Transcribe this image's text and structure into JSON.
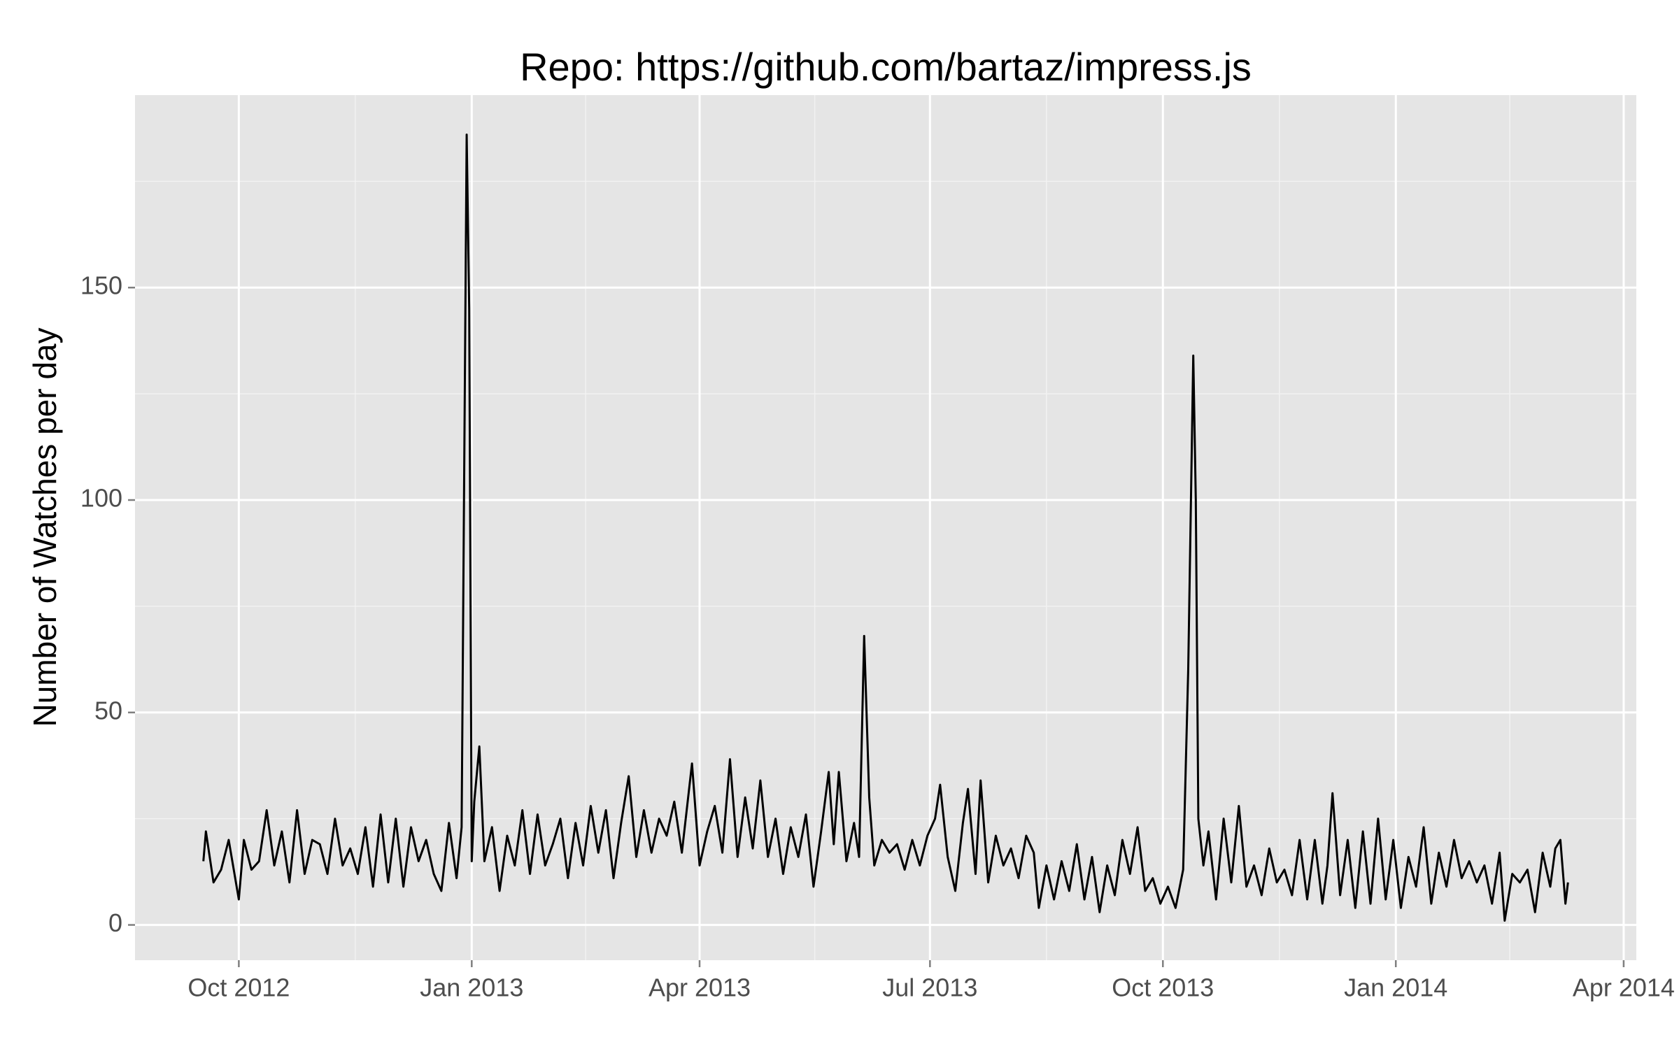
{
  "chart_data": {
    "type": "line",
    "title": "Repo: https://github.com/bartaz/impress.js",
    "y_label": "Number of Watches per day",
    "xlim": [
      "2012-08-21",
      "2014-04-06"
    ],
    "xticks": [
      {
        "value": "2012-10-01",
        "label": "Oct 2012"
      },
      {
        "value": "2013-01-01",
        "label": "Jan 2013"
      },
      {
        "value": "2013-04-01",
        "label": "Apr 2013"
      },
      {
        "value": "2013-07-01",
        "label": "Jul 2013"
      },
      {
        "value": "2013-10-01",
        "label": "Oct 2013"
      },
      {
        "value": "2014-01-01",
        "label": "Jan 2014"
      },
      {
        "value": "2014-04-01",
        "label": "Apr 2014"
      }
    ],
    "ylim": [
      -8.3,
      195.3
    ],
    "yticks": [
      0,
      50,
      100,
      150
    ],
    "grid": true,
    "x": [
      "2012-09-17",
      "2012-09-18",
      "2012-09-21",
      "2012-09-24",
      "2012-09-27",
      "2012-10-01",
      "2012-10-03",
      "2012-10-06",
      "2012-10-09",
      "2012-10-12",
      "2012-10-15",
      "2012-10-18",
      "2012-10-21",
      "2012-10-24",
      "2012-10-27",
      "2012-10-30",
      "2012-11-02",
      "2012-11-05",
      "2012-11-08",
      "2012-11-11",
      "2012-11-14",
      "2012-11-17",
      "2012-11-20",
      "2012-11-23",
      "2012-11-26",
      "2012-11-29",
      "2012-12-02",
      "2012-12-05",
      "2012-12-08",
      "2012-12-11",
      "2012-12-14",
      "2012-12-17",
      "2012-12-20",
      "2012-12-23",
      "2012-12-26",
      "2012-12-28",
      "2012-12-30",
      "2012-12-31",
      "2013-01-01",
      "2013-01-02",
      "2013-01-04",
      "2013-01-06",
      "2013-01-09",
      "2013-01-12",
      "2013-01-15",
      "2013-01-18",
      "2013-01-21",
      "2013-01-24",
      "2013-01-27",
      "2013-01-30",
      "2013-02-02",
      "2013-02-05",
      "2013-02-08",
      "2013-02-11",
      "2013-02-14",
      "2013-02-17",
      "2013-02-20",
      "2013-02-23",
      "2013-02-26",
      "2013-03-01",
      "2013-03-04",
      "2013-03-07",
      "2013-03-10",
      "2013-03-13",
      "2013-03-16",
      "2013-03-19",
      "2013-03-22",
      "2013-03-25",
      "2013-03-29",
      "2013-04-01",
      "2013-04-04",
      "2013-04-07",
      "2013-04-10",
      "2013-04-13",
      "2013-04-16",
      "2013-04-19",
      "2013-04-22",
      "2013-04-25",
      "2013-04-28",
      "2013-05-01",
      "2013-05-04",
      "2013-05-07",
      "2013-05-10",
      "2013-05-13",
      "2013-05-16",
      "2013-05-19",
      "2013-05-22",
      "2013-05-24",
      "2013-05-26",
      "2013-05-29",
      "2013-06-01",
      "2013-06-03",
      "2013-06-05",
      "2013-06-07",
      "2013-06-09",
      "2013-06-12",
      "2013-06-15",
      "2013-06-18",
      "2013-06-21",
      "2013-06-24",
      "2013-06-27",
      "2013-06-30",
      "2013-07-03",
      "2013-07-05",
      "2013-07-08",
      "2013-07-11",
      "2013-07-14",
      "2013-07-16",
      "2013-07-19",
      "2013-07-21",
      "2013-07-24",
      "2013-07-27",
      "2013-07-30",
      "2013-08-02",
      "2013-08-05",
      "2013-08-08",
      "2013-08-11",
      "2013-08-13",
      "2013-08-16",
      "2013-08-19",
      "2013-08-22",
      "2013-08-25",
      "2013-08-28",
      "2013-08-31",
      "2013-09-03",
      "2013-09-06",
      "2013-09-09",
      "2013-09-12",
      "2013-09-15",
      "2013-09-18",
      "2013-09-21",
      "2013-09-24",
      "2013-09-27",
      "2013-09-30",
      "2013-10-03",
      "2013-10-06",
      "2013-10-09",
      "2013-10-11",
      "2013-10-13",
      "2013-10-14",
      "2013-10-15",
      "2013-10-17",
      "2013-10-19",
      "2013-10-22",
      "2013-10-25",
      "2013-10-28",
      "2013-10-31",
      "2013-11-03",
      "2013-11-06",
      "2013-11-09",
      "2013-11-12",
      "2013-11-15",
      "2013-11-18",
      "2013-11-21",
      "2013-11-24",
      "2013-11-27",
      "2013-11-30",
      "2013-12-03",
      "2013-12-05",
      "2013-12-07",
      "2013-12-10",
      "2013-12-13",
      "2013-12-16",
      "2013-12-19",
      "2013-12-22",
      "2013-12-25",
      "2013-12-28",
      "2013-12-31",
      "2014-01-03",
      "2014-01-06",
      "2014-01-09",
      "2014-01-12",
      "2014-01-15",
      "2014-01-18",
      "2014-01-21",
      "2014-01-24",
      "2014-01-27",
      "2014-01-30",
      "2014-02-02",
      "2014-02-05",
      "2014-02-08",
      "2014-02-11",
      "2014-02-13",
      "2014-02-16",
      "2014-02-19",
      "2014-02-22",
      "2014-02-25",
      "2014-02-28",
      "2014-03-03",
      "2014-03-05",
      "2014-03-07",
      "2014-03-09",
      "2014-03-10"
    ],
    "values": [
      15,
      22,
      10,
      13,
      20,
      6,
      20,
      13,
      15,
      27,
      14,
      22,
      10,
      27,
      12,
      20,
      19,
      12,
      25,
      14,
      18,
      12,
      23,
      9,
      26,
      10,
      25,
      9,
      23,
      15,
      20,
      12,
      8,
      24,
      11,
      23,
      186,
      145,
      15,
      29,
      42,
      15,
      23,
      8,
      21,
      14,
      27,
      12,
      26,
      14,
      19,
      25,
      11,
      24,
      14,
      28,
      17,
      27,
      11,
      24,
      35,
      16,
      27,
      17,
      25,
      21,
      29,
      17,
      38,
      14,
      22,
      28,
      17,
      39,
      16,
      30,
      18,
      34,
      16,
      25,
      12,
      23,
      16,
      26,
      9,
      22,
      36,
      19,
      36,
      15,
      24,
      16,
      68,
      30,
      14,
      20,
      17,
      19,
      13,
      20,
      14,
      21,
      25,
      33,
      16,
      8,
      24,
      32,
      12,
      34,
      10,
      21,
      14,
      18,
      11,
      21,
      17,
      4,
      14,
      6,
      15,
      8,
      19,
      6,
      16,
      3,
      14,
      7,
      20,
      12,
      23,
      8,
      11,
      5,
      9,
      4,
      13,
      60,
      134,
      100,
      25,
      14,
      22,
      6,
      25,
      10,
      28,
      9,
      14,
      7,
      18,
      10,
      13,
      7,
      20,
      6,
      20,
      5,
      14,
      31,
      7,
      20,
      4,
      22,
      5,
      25,
      6,
      20,
      4,
      16,
      9,
      23,
      5,
      17,
      9,
      20,
      11,
      15,
      10,
      14,
      5,
      17,
      1,
      12,
      10,
      13,
      3,
      17,
      9,
      18,
      20,
      5,
      10
    ],
    "color": "#000000"
  }
}
